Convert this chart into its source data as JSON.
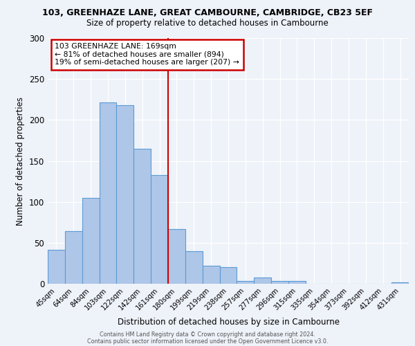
{
  "title": "103, GREENHAZE LANE, GREAT CAMBOURNE, CAMBRIDGE, CB23 5EF",
  "subtitle": "Size of property relative to detached houses in Cambourne",
  "xlabel": "Distribution of detached houses by size in Cambourne",
  "ylabel": "Number of detached properties",
  "bar_labels": [
    "45sqm",
    "64sqm",
    "84sqm",
    "103sqm",
    "122sqm",
    "142sqm",
    "161sqm",
    "180sqm",
    "199sqm",
    "219sqm",
    "238sqm",
    "257sqm",
    "277sqm",
    "296sqm",
    "315sqm",
    "335sqm",
    "354sqm",
    "373sqm",
    "392sqm",
    "412sqm",
    "431sqm"
  ],
  "bar_heights": [
    41,
    64,
    105,
    221,
    218,
    165,
    133,
    67,
    40,
    22,
    20,
    3,
    8,
    3,
    3,
    0,
    0,
    0,
    0,
    0,
    2
  ],
  "bar_color": "#aec6e8",
  "bar_edge_color": "#5b9bd5",
  "bg_color": "#eef2f9",
  "grid_color": "#ffffff",
  "vline_color": "#cc0000",
  "annotation_title": "103 GREENHAZE LANE: 169sqm",
  "annotation_line1": "← 81% of detached houses are smaller (894)",
  "annotation_line2": "19% of semi-detached houses are larger (207) →",
  "annotation_box_color": "#cc0000",
  "annotation_bg": "#ffffff",
  "ylim": [
    0,
    300
  ],
  "yticks": [
    0,
    50,
    100,
    150,
    200,
    250,
    300
  ],
  "footer1": "Contains HM Land Registry data © Crown copyright and database right 2024.",
  "footer2": "Contains public sector information licensed under the Open Government Licence v3.0."
}
